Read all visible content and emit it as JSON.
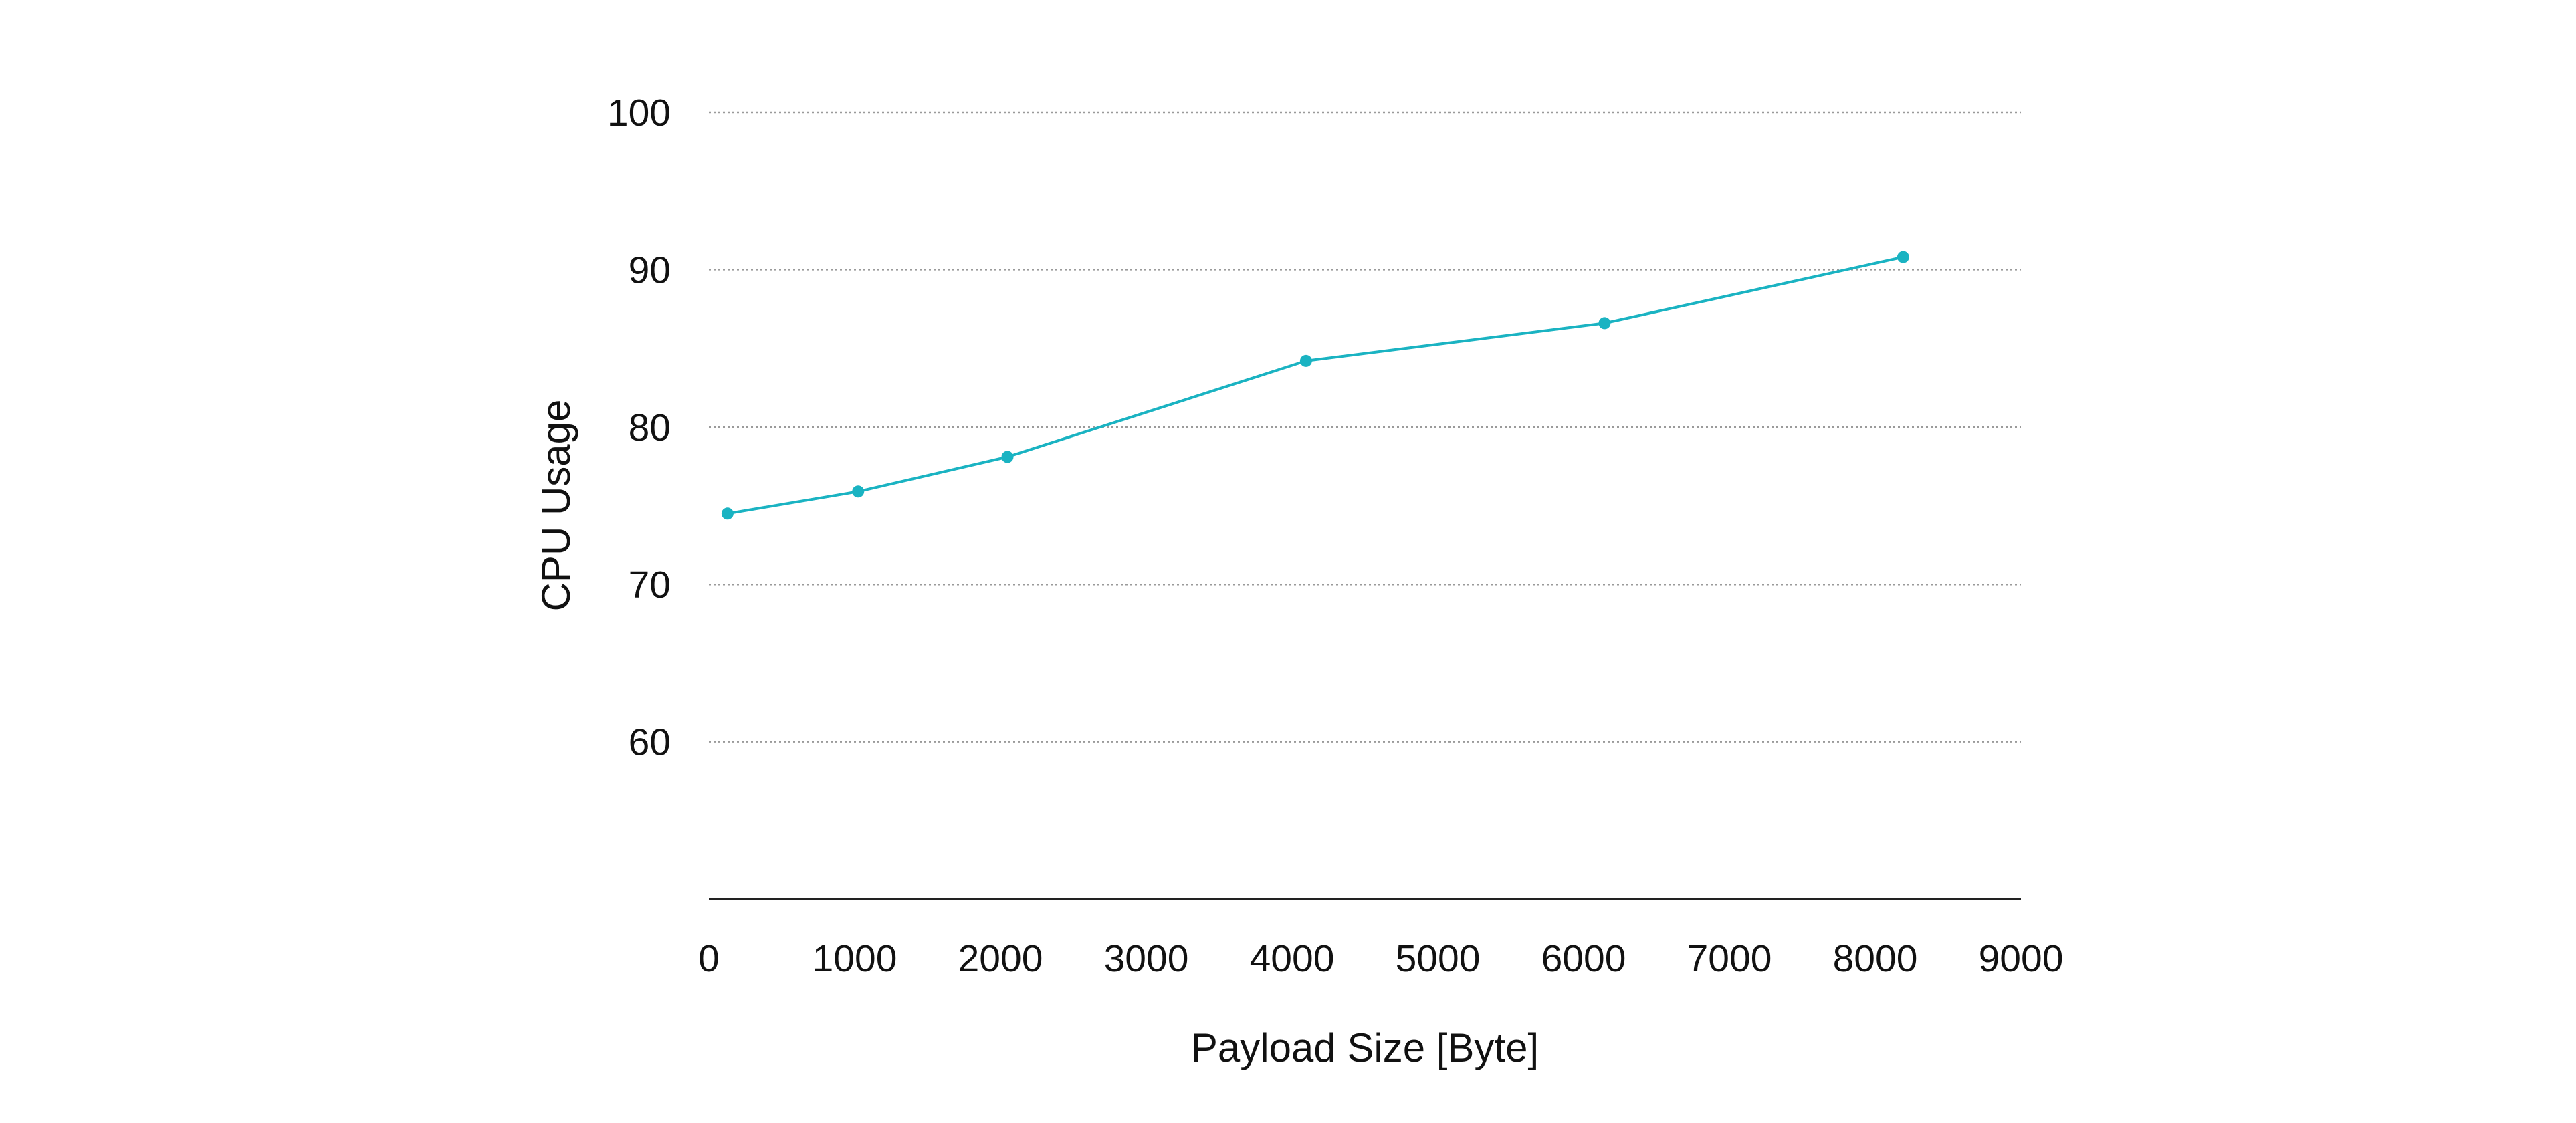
{
  "chart_data": {
    "type": "line",
    "title": "",
    "xlabel": "Payload Size [Byte]",
    "ylabel": "CPU Usage",
    "xlim": [
      0,
      9000
    ],
    "ylim": [
      50,
      100
    ],
    "x_ticks": [
      0,
      1000,
      2000,
      3000,
      4000,
      5000,
      6000,
      7000,
      8000,
      9000
    ],
    "y_ticks": [
      60,
      70,
      80,
      90,
      100
    ],
    "grid": "horizontal dotted",
    "legend": "none",
    "series": [
      {
        "color": "#1ab3c2",
        "x": [
          128,
          1024,
          2048,
          4096,
          6144,
          8192
        ],
        "y": [
          74.5,
          75.9,
          78.1,
          84.2,
          86.6,
          90.8
        ]
      }
    ]
  }
}
